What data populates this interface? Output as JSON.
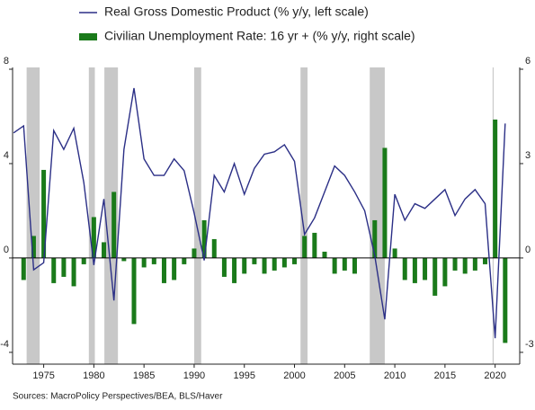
{
  "chart_data": {
    "type": "combo",
    "x": [
      1972,
      1973,
      1974,
      1975,
      1976,
      1977,
      1978,
      1979,
      1980,
      1981,
      1982,
      1983,
      1984,
      1985,
      1986,
      1987,
      1988,
      1989,
      1990,
      1991,
      1992,
      1993,
      1994,
      1995,
      1996,
      1997,
      1998,
      1999,
      2000,
      2001,
      2002,
      2003,
      2004,
      2005,
      2006,
      2007,
      2008,
      2009,
      2010,
      2011,
      2012,
      2013,
      2014,
      2015,
      2016,
      2017,
      2018,
      2019,
      2020,
      2021
    ],
    "series": [
      {
        "name": "Real Gross Domestic Product (% y/y, left scale)",
        "type": "line",
        "color": "#2b2f86",
        "values": [
          5.3,
          5.6,
          -0.5,
          -0.2,
          5.4,
          4.6,
          5.5,
          3.2,
          -0.3,
          2.5,
          -1.8,
          4.6,
          7.2,
          4.2,
          3.5,
          3.5,
          4.2,
          3.7,
          1.9,
          -0.1,
          3.5,
          2.8,
          4.0,
          2.7,
          3.8,
          4.4,
          4.5,
          4.8,
          4.1,
          1.0,
          1.7,
          2.8,
          3.9,
          3.5,
          2.8,
          2.0,
          0.1,
          -2.6,
          2.7,
          1.6,
          2.3,
          2.1,
          2.5,
          2.9,
          1.8,
          2.5,
          2.9,
          2.3,
          -3.4,
          5.7
        ]
      },
      {
        "name": "Civilian Unemployment Rate: 16 yr + (% y/y, right scale)",
        "type": "bar",
        "axis": "y2",
        "color": "#1a7a1a",
        "values": [
          null,
          -0.7,
          0.7,
          2.8,
          -0.8,
          -0.6,
          -0.9,
          -0.2,
          1.3,
          0.5,
          2.1,
          -0.1,
          -2.1,
          -0.3,
          -0.2,
          -0.8,
          -0.7,
          -0.2,
          0.3,
          1.2,
          0.6,
          -0.6,
          -0.8,
          -0.5,
          -0.2,
          -0.5,
          -0.4,
          -0.3,
          -0.2,
          0.7,
          0.8,
          0.2,
          -0.5,
          -0.4,
          -0.5,
          0.0,
          1.2,
          3.5,
          0.3,
          -0.7,
          -0.8,
          -0.7,
          -1.2,
          -0.9,
          -0.4,
          -0.5,
          -0.4,
          -0.2,
          4.4,
          -2.7
        ]
      }
    ],
    "recessions": [
      [
        1973.3,
        1974.6
      ],
      [
        1979.5,
        1980.1
      ],
      [
        1981.05,
        1982.4
      ],
      [
        1990.0,
        1990.7
      ],
      [
        2000.6,
        2001.3
      ],
      [
        2007.5,
        2009.0
      ],
      [
        2019.75,
        2019.85
      ]
    ],
    "recession_color": "#c8c8c8",
    "xlim": [
      1971.9,
      2022.45
    ],
    "xticks": [
      1975,
      1980,
      1985,
      1990,
      1995,
      2000,
      2005,
      2010,
      2015,
      2020
    ],
    "ylim": [
      -4.5,
      8
    ],
    "yticks": [
      8,
      4,
      0,
      -4
    ],
    "y2lim": [
      -3.375,
      6
    ],
    "y2ticks": [
      6,
      3,
      0,
      -3
    ],
    "source": "Sources:  MacroPolicy Perspectives/BEA, BLS/Haver"
  }
}
